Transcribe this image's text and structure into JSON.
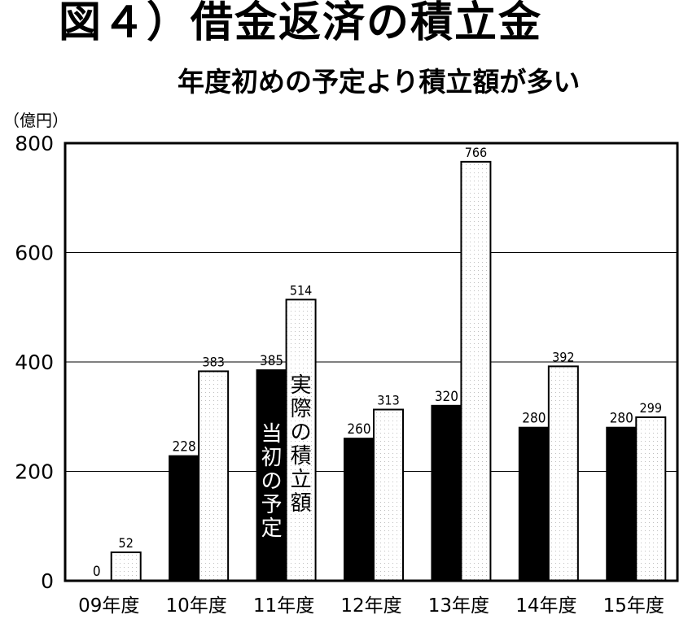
{
  "header": {
    "title": "図４）借金返済の積立金",
    "subtitle": "年度初めの予定より積立額が多い",
    "unit": "（億円）"
  },
  "chart_data": {
    "type": "bar",
    "categories": [
      "09年度",
      "10年度",
      "11年度",
      "12年度",
      "13年度",
      "14年度",
      "15年度"
    ],
    "series": [
      {
        "name": "当初の予定",
        "values": [
          0,
          228,
          385,
          260,
          320,
          280,
          280
        ],
        "color": "#000000"
      },
      {
        "name": "実際の積立額",
        "values": [
          52,
          383,
          514,
          313,
          766,
          392,
          299
        ],
        "color": "#ffffff"
      }
    ],
    "ylim": [
      0,
      800
    ],
    "yticks": [
      "0",
      "200",
      "400",
      "600",
      "800"
    ],
    "grid": true,
    "legend": "inline-labels-on-11年度-bars"
  }
}
